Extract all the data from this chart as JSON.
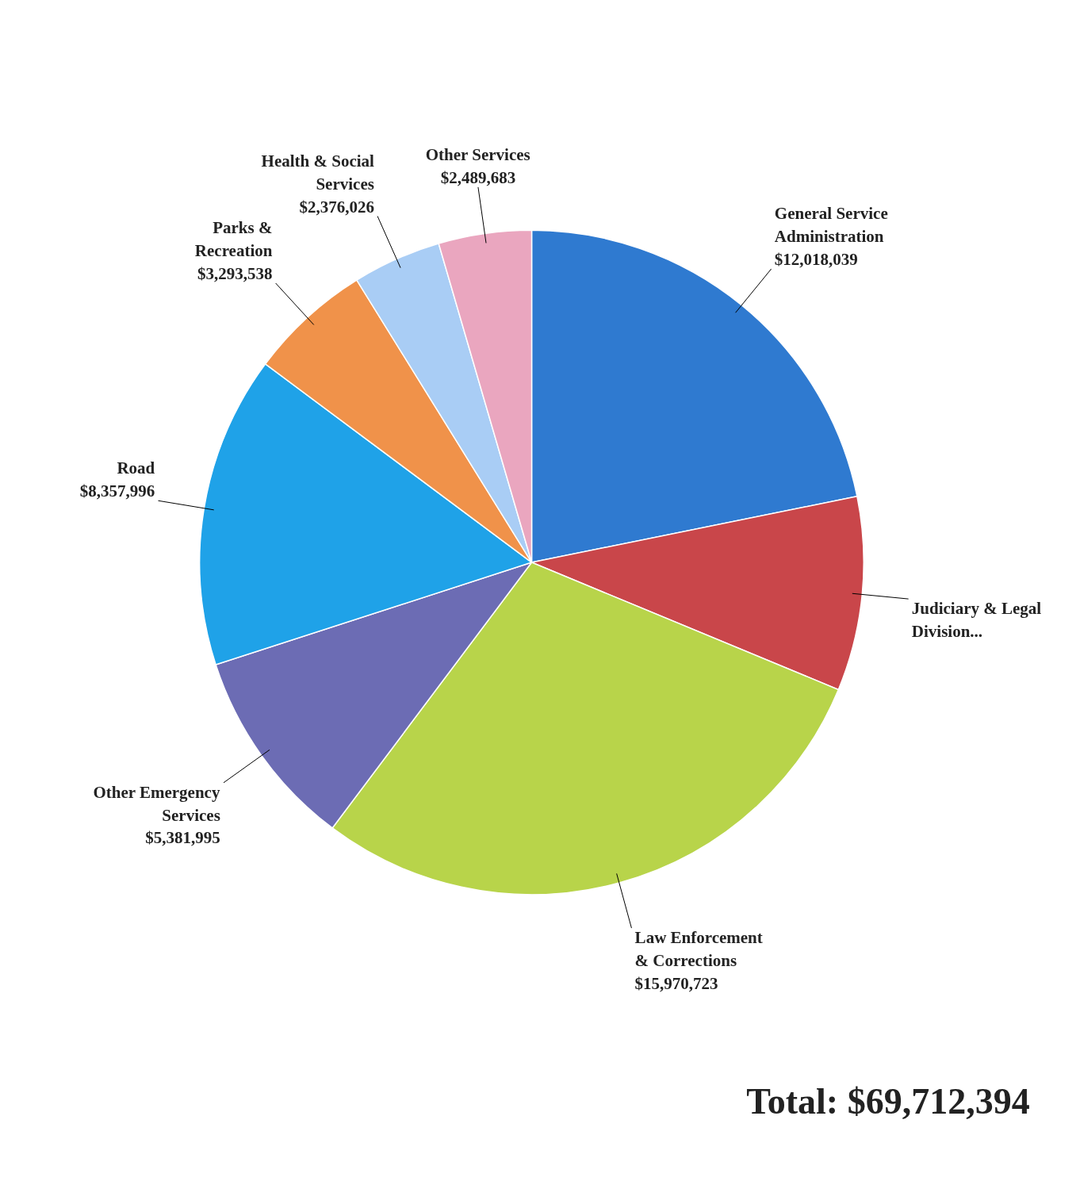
{
  "chart_data": {
    "type": "pie",
    "categories": [
      "General Service\nAdministration",
      "Judiciary & Legal\nDivision...",
      "Law Enforcement\n& Corrections",
      "Other Emergency\nServices",
      "Road",
      "Parks &\nRecreation",
      "Health & Social\nServices",
      "Other Services"
    ],
    "values": [
      12018039,
      5200000,
      15970723,
      5381995,
      8357996,
      3293538,
      2376026,
      2489683
    ],
    "value_labels": [
      "$12,018,039",
      null,
      "$15,970,723",
      "$5,381,995",
      "$8,357,996",
      "$3,293,538",
      "$2,376,026",
      "$2,489,683"
    ],
    "colors": [
      "#2f7ad0",
      "#c9464a",
      "#b8d44a",
      "#6c6cb4",
      "#1fa2e8",
      "#f0924a",
      "#a9cdf5",
      "#eaa6bf"
    ],
    "annotations": [
      "Total: $69,712,394"
    ]
  }
}
